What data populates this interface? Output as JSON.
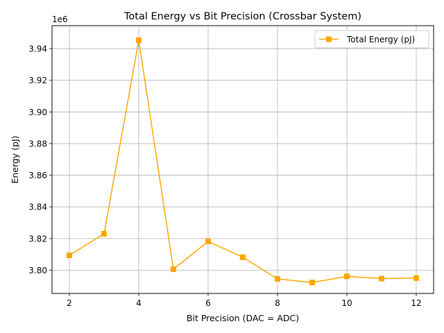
{
  "chart_data": {
    "type": "line",
    "title": "Total Energy vs Bit Precision (Crossbar System)",
    "xlabel": "Bit Precision (DAC = ADC)",
    "ylabel": "Energy (pJ)",
    "y_offset_label": "1e6",
    "xlim": [
      1.5,
      12.5
    ],
    "ylim": [
      3.7853,
      3.9545
    ],
    "x_ticks": [
      2,
      4,
      6,
      8,
      10,
      12
    ],
    "x_tick_labels": [
      "2",
      "4",
      "6",
      "8",
      "10",
      "12"
    ],
    "y_ticks": [
      3.8,
      3.82,
      3.84,
      3.86,
      3.88,
      3.9,
      3.92,
      3.94
    ],
    "y_tick_labels": [
      "3.80",
      "3.82",
      "3.84",
      "3.86",
      "3.88",
      "3.90",
      "3.92",
      "3.94"
    ],
    "grid": true,
    "legend_position": "top-right",
    "series": [
      {
        "name": "Total Energy (pJ)",
        "color": "#ffa500",
        "marker": "square",
        "x": [
          2,
          3,
          4,
          5,
          6,
          7,
          8,
          9,
          10,
          11,
          12
        ],
        "y": [
          3.8094,
          3.823,
          3.9453,
          3.8006,
          3.8182,
          3.8082,
          3.7945,
          3.7922,
          3.7961,
          3.7947,
          3.795
        ]
      }
    ]
  }
}
